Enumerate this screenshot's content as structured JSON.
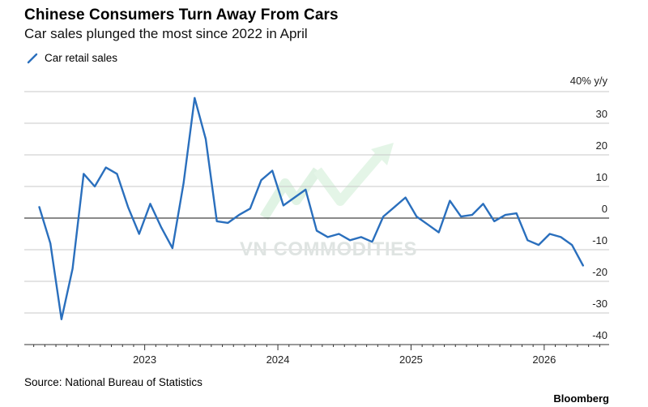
{
  "header": {
    "title": "Chinese Consumers Turn Away From Cars",
    "subtitle": "Car sales plunged the most since 2022 in April"
  },
  "footer": {
    "source": "Source: National Bureau of Statistics",
    "brand": "Bloomberg"
  },
  "watermark": {
    "text": "VN COMMODITIES"
  },
  "colors": {
    "line": "#2a6fbd",
    "grid": "#c9c9c9",
    "zero": "#444444",
    "axis": "#333333"
  },
  "chart_data": {
    "type": "line",
    "title": "Chinese Consumers Turn Away From Cars",
    "subtitle": "Car sales plunged the most since 2022 in April",
    "ylabel": "40% y/y",
    "ylim": [
      -40,
      40
    ],
    "yticks": [
      {
        "value": 40,
        "label": "40% y/y"
      },
      {
        "value": 30,
        "label": "30"
      },
      {
        "value": 20,
        "label": "20"
      },
      {
        "value": 10,
        "label": "10"
      },
      {
        "value": 0,
        "label": "0"
      },
      {
        "value": -10,
        "label": "-10"
      },
      {
        "value": -20,
        "label": "-20"
      },
      {
        "value": -30,
        "label": "-30"
      },
      {
        "value": -40,
        "label": "-40"
      }
    ],
    "xticks": [
      "2023",
      "2024",
      "2025",
      "2026"
    ],
    "legend": {
      "position": "top-left",
      "entries": [
        "Car retail sales"
      ]
    },
    "grid": true,
    "series": [
      {
        "name": "Car retail sales",
        "x": [
          "2022-03",
          "2022-04",
          "2022-05",
          "2022-06",
          "2022-07",
          "2022-08",
          "2022-09",
          "2022-10",
          "2022-11",
          "2022-12",
          "2023-01",
          "2023-02",
          "2023-03",
          "2023-04",
          "2023-05",
          "2023-06",
          "2023-07",
          "2023-08",
          "2023-09",
          "2023-10",
          "2023-11",
          "2023-12",
          "2024-01",
          "2024-02",
          "2024-03",
          "2024-04",
          "2024-05",
          "2024-06",
          "2024-07",
          "2024-08",
          "2024-09",
          "2024-10",
          "2024-11",
          "2024-12",
          "2025-01",
          "2025-02",
          "2025-03",
          "2025-04",
          "2025-05",
          "2025-06",
          "2025-07",
          "2025-08",
          "2025-09",
          "2025-10",
          "2025-11",
          "2025-12",
          "2026-01",
          "2026-02",
          "2026-03",
          "2026-04"
        ],
        "values": [
          3.5,
          -8,
          -32,
          -16,
          14,
          10,
          16,
          14,
          3.5,
          -5,
          4.5,
          -3,
          -9.5,
          11,
          38,
          25,
          -1,
          -1.5,
          1,
          3,
          12,
          15,
          4,
          6.5,
          9,
          -4,
          -6,
          -5,
          -7,
          -6,
          -7.5,
          0.5,
          3.5,
          6.5,
          0.5,
          -2,
          -4.5,
          5.5,
          0.5,
          1,
          4.5,
          -1,
          1,
          1.5,
          -7,
          -8.5,
          -5,
          -6,
          -8.5,
          -15
        ]
      }
    ]
  }
}
